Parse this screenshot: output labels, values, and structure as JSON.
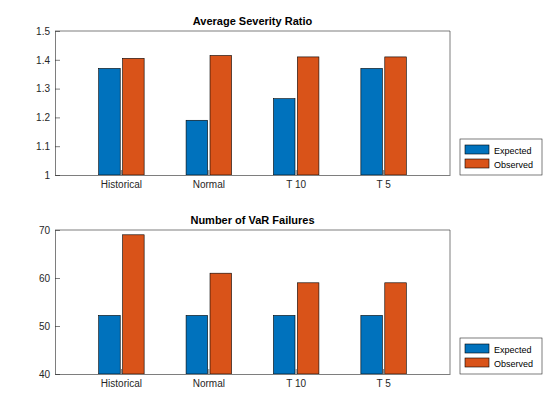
{
  "chart_data": [
    {
      "type": "bar",
      "title": "Average Severity Ratio",
      "categories": [
        "Historical",
        "Normal",
        "T 10",
        "T 5"
      ],
      "series": [
        {
          "name": "Expected",
          "color": "#0072bd",
          "values": [
            1.37,
            1.19,
            1.265,
            1.37
          ]
        },
        {
          "name": "Observed",
          "color": "#d95319",
          "values": [
            1.405,
            1.415,
            1.41,
            1.41
          ]
        }
      ],
      "ylim": [
        1,
        1.5
      ],
      "yticks": [
        1,
        1.1,
        1.2,
        1.3,
        1.4,
        1.5
      ],
      "grid": false,
      "legend": "right"
    },
    {
      "type": "bar",
      "title": "Number of VaR Failures",
      "categories": [
        "Historical",
        "Normal",
        "T 10",
        "T 5"
      ],
      "series": [
        {
          "name": "Expected",
          "color": "#0072bd",
          "values": [
            52.2,
            52.2,
            52.2,
            52.2
          ]
        },
        {
          "name": "Observed",
          "color": "#d95319",
          "values": [
            69,
            61,
            59,
            59
          ]
        }
      ],
      "ylim": [
        40,
        70
      ],
      "yticks": [
        40,
        50,
        60,
        70
      ],
      "grid": false,
      "legend": "right"
    }
  ]
}
